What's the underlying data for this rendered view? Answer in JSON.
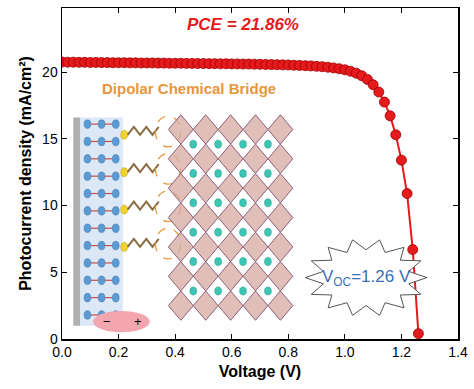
{
  "chart_data": {
    "type": "line",
    "xlabel": "Voltage (V)",
    "ylabel": "Photocurrent density (mA/cm²)",
    "x": [
      0.0,
      0.02,
      0.04,
      0.06,
      0.08,
      0.1,
      0.12,
      0.14,
      0.16,
      0.18,
      0.2,
      0.22,
      0.24,
      0.26,
      0.28,
      0.3,
      0.32,
      0.34,
      0.36,
      0.38,
      0.4,
      0.42,
      0.44,
      0.46,
      0.48,
      0.5,
      0.52,
      0.54,
      0.56,
      0.58,
      0.6,
      0.62,
      0.64,
      0.66,
      0.68,
      0.7,
      0.72,
      0.74,
      0.76,
      0.78,
      0.8,
      0.82,
      0.84,
      0.86,
      0.88,
      0.9,
      0.92,
      0.94,
      0.96,
      0.98,
      1.0,
      1.02,
      1.04,
      1.06,
      1.08,
      1.1,
      1.12,
      1.14,
      1.16,
      1.18,
      1.2,
      1.22,
      1.24,
      1.26
    ],
    "values": [
      20.75,
      20.74,
      20.74,
      20.73,
      20.73,
      20.72,
      20.72,
      20.71,
      20.71,
      20.7,
      20.7,
      20.7,
      20.69,
      20.69,
      20.68,
      20.68,
      20.68,
      20.67,
      20.67,
      20.66,
      20.66,
      20.66,
      20.65,
      20.65,
      20.64,
      20.64,
      20.63,
      20.63,
      20.62,
      20.62,
      20.61,
      20.61,
      20.6,
      20.6,
      20.59,
      20.58,
      20.57,
      20.56,
      20.55,
      20.54,
      20.53,
      20.51,
      20.5,
      20.48,
      20.46,
      20.43,
      20.4,
      20.36,
      20.31,
      20.25,
      20.17,
      20.06,
      19.92,
      19.72,
      19.44,
      19.05,
      18.5,
      17.75,
      16.72,
      15.3,
      13.4,
      10.9,
      6.7,
      0.4
    ],
    "color": "#e41a1c",
    "marker": "circle",
    "line_style": "solid",
    "xlim": [
      0,
      1.4
    ],
    "xticks": [
      {
        "value": 0,
        "label": "0.0"
      },
      0.2,
      0.4,
      0.6,
      0.8,
      {
        "value": 1,
        "label": "1.0"
      },
      1.2,
      1.4
    ],
    "ylim": [
      0,
      24.8
    ],
    "yticks": [
      0,
      5,
      10,
      15,
      20
    ],
    "grid": false,
    "annotations": {
      "pce": "PCE = 21.86%",
      "bridge": "Dipolar Chemical Bridge",
      "voc": {
        "main": "V",
        "subscript": "OC",
        "rest": "=1.26 V"
      },
      "dipole": [
        "−",
        "+"
      ]
    }
  }
}
